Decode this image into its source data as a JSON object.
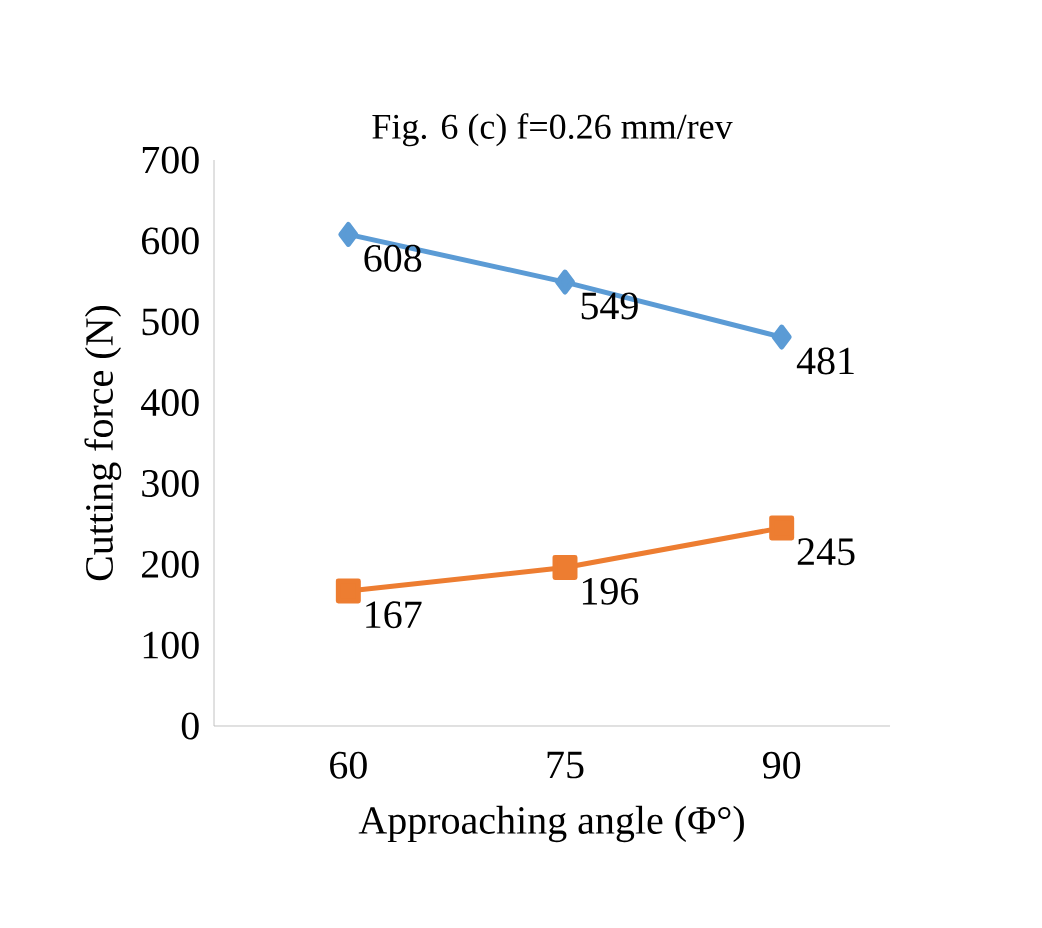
{
  "chart_data": {
    "type": "line",
    "title": "Fig. 6 (c) f=0.26  mm/rev",
    "xlabel": "Approaching angle (Φ°)",
    "ylabel": "Cutting force (N)",
    "categories": [
      "60",
      "75",
      "90"
    ],
    "series": [
      {
        "color": "#5b9bd5",
        "marker": "diamond",
        "values": [
          608,
          549,
          481
        ]
      },
      {
        "color": "#ed7d31",
        "marker": "square",
        "values": [
          167,
          196,
          245
        ]
      }
    ],
    "ylim": [
      0,
      700
    ],
    "yticks": [
      0,
      100,
      200,
      300,
      400,
      500,
      600,
      700
    ],
    "data_labels": true,
    "line_style": "solid"
  }
}
